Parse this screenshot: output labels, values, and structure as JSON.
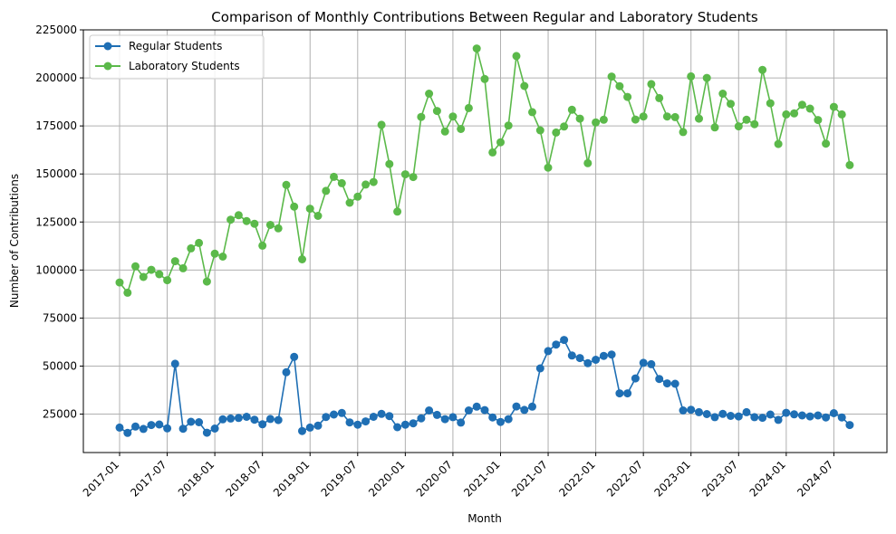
{
  "chart_data": {
    "type": "line",
    "title": "Comparison of Monthly Contributions Between Regular and Laboratory Students",
    "xlabel": "Month",
    "ylabel": "Number of Contributions",
    "x_start": "2017-01",
    "x_ticks": [
      "2017-01",
      "2017-07",
      "2018-01",
      "2018-07",
      "2019-01",
      "2019-07",
      "2020-01",
      "2020-07",
      "2021-01",
      "2021-07",
      "2022-01",
      "2022-07",
      "2023-01",
      "2023-07",
      "2024-01",
      "2024-07"
    ],
    "y_ticks": [
      25000,
      50000,
      75000,
      100000,
      125000,
      150000,
      175000,
      200000,
      225000
    ],
    "ylim": [
      5000,
      225000
    ],
    "grid": true,
    "legend_position": "top-left",
    "series": [
      {
        "name": "Regular Students",
        "color": "#1f6fb4",
        "values": [
          18000,
          15200,
          18500,
          17300,
          19300,
          19600,
          17600,
          51200,
          17400,
          21000,
          20800,
          15300,
          17500,
          22300,
          22700,
          23000,
          23600,
          22100,
          19700,
          22500,
          21900,
          46800,
          54800,
          16200,
          18000,
          19000,
          23500,
          24800,
          25600,
          20700,
          19500,
          21200,
          23600,
          25100,
          24000,
          18200,
          19500,
          20200,
          22800,
          26900,
          24600,
          22400,
          23400,
          20600,
          26900,
          28900,
          27100,
          23300,
          20900,
          22400,
          29000,
          27200,
          28900,
          48800,
          57800,
          61200,
          63600,
          55500,
          54200,
          51500,
          53300,
          55300,
          56000,
          35800,
          35800,
          43600,
          51700,
          51000,
          43300,
          41000,
          40800,
          26900,
          27300,
          26000,
          25000,
          23400,
          25100,
          24100,
          23800,
          26000,
          23400,
          23100,
          24800,
          22000,
          25700,
          24900,
          24300,
          23800,
          24300,
          23300,
          25500,
          23300,
          19300
        ]
      },
      {
        "name": "Laboratory Students",
        "color": "#5bb94a",
        "values": [
          93500,
          88200,
          101900,
          96400,
          100100,
          97800,
          94700,
          104600,
          100900,
          111300,
          114100,
          94000,
          108500,
          107000,
          126200,
          128500,
          125500,
          124100,
          112700,
          123500,
          121700,
          144300,
          133000,
          105600,
          131900,
          128200,
          141200,
          148500,
          145200,
          135000,
          138200,
          144500,
          145800,
          175600,
          155200,
          130400,
          149800,
          148400,
          179700,
          191800,
          182800,
          172100,
          179900,
          173400,
          184300,
          215300,
          199400,
          161200,
          166500,
          175200,
          211400,
          195800,
          182200,
          172700,
          153300,
          171600,
          174700,
          183400,
          178800,
          155600,
          176800,
          178200,
          200700,
          195700,
          190100,
          178300,
          179900,
          196800,
          189500,
          179900,
          179600,
          171800,
          200800,
          178800,
          200000,
          174200,
          191800,
          186500,
          174800,
          178200,
          175900,
          204200,
          186800,
          165600,
          181000,
          181500,
          186000,
          184000,
          178100,
          165800,
          184900,
          181000,
          154600
        ]
      }
    ]
  }
}
